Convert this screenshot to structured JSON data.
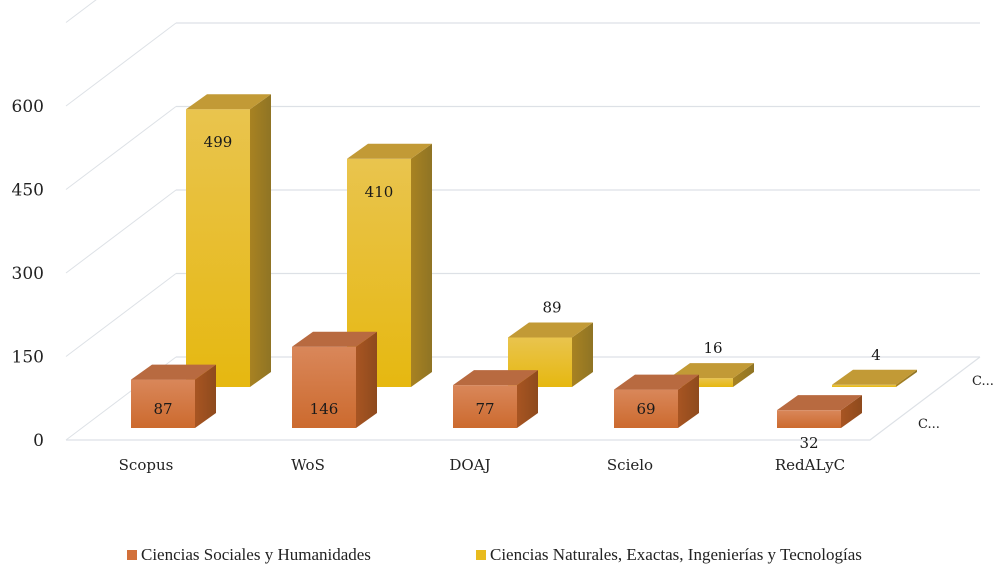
{
  "chart_data": {
    "type": "bar",
    "subtype": "3d-column",
    "title": "",
    "xlabel": "",
    "ylabel": "",
    "categories": [
      "Scopus",
      "WoS",
      "DOAJ",
      "Scielo",
      "RedALyC"
    ],
    "series": [
      {
        "name": "Ciencias Sociales y Humanidades",
        "short_label": "C...",
        "color": "#D2703A",
        "values": [
          87,
          146,
          77,
          69,
          32
        ]
      },
      {
        "name": "Ciencias Naturales, Exactas, Ingenierías y Tecnologías",
        "short_label": "C...",
        "color": "#E8BB1E",
        "values": [
          499,
          410,
          89,
          16,
          4
        ]
      }
    ],
    "ylim": [
      0,
      750
    ],
    "yticks": [
      0,
      150,
      300,
      450,
      600
    ],
    "ytick_labels": [
      "0",
      "150",
      "300",
      "450",
      "600"
    ],
    "grid": true,
    "data_labels": true,
    "legend_position": "bottom"
  }
}
